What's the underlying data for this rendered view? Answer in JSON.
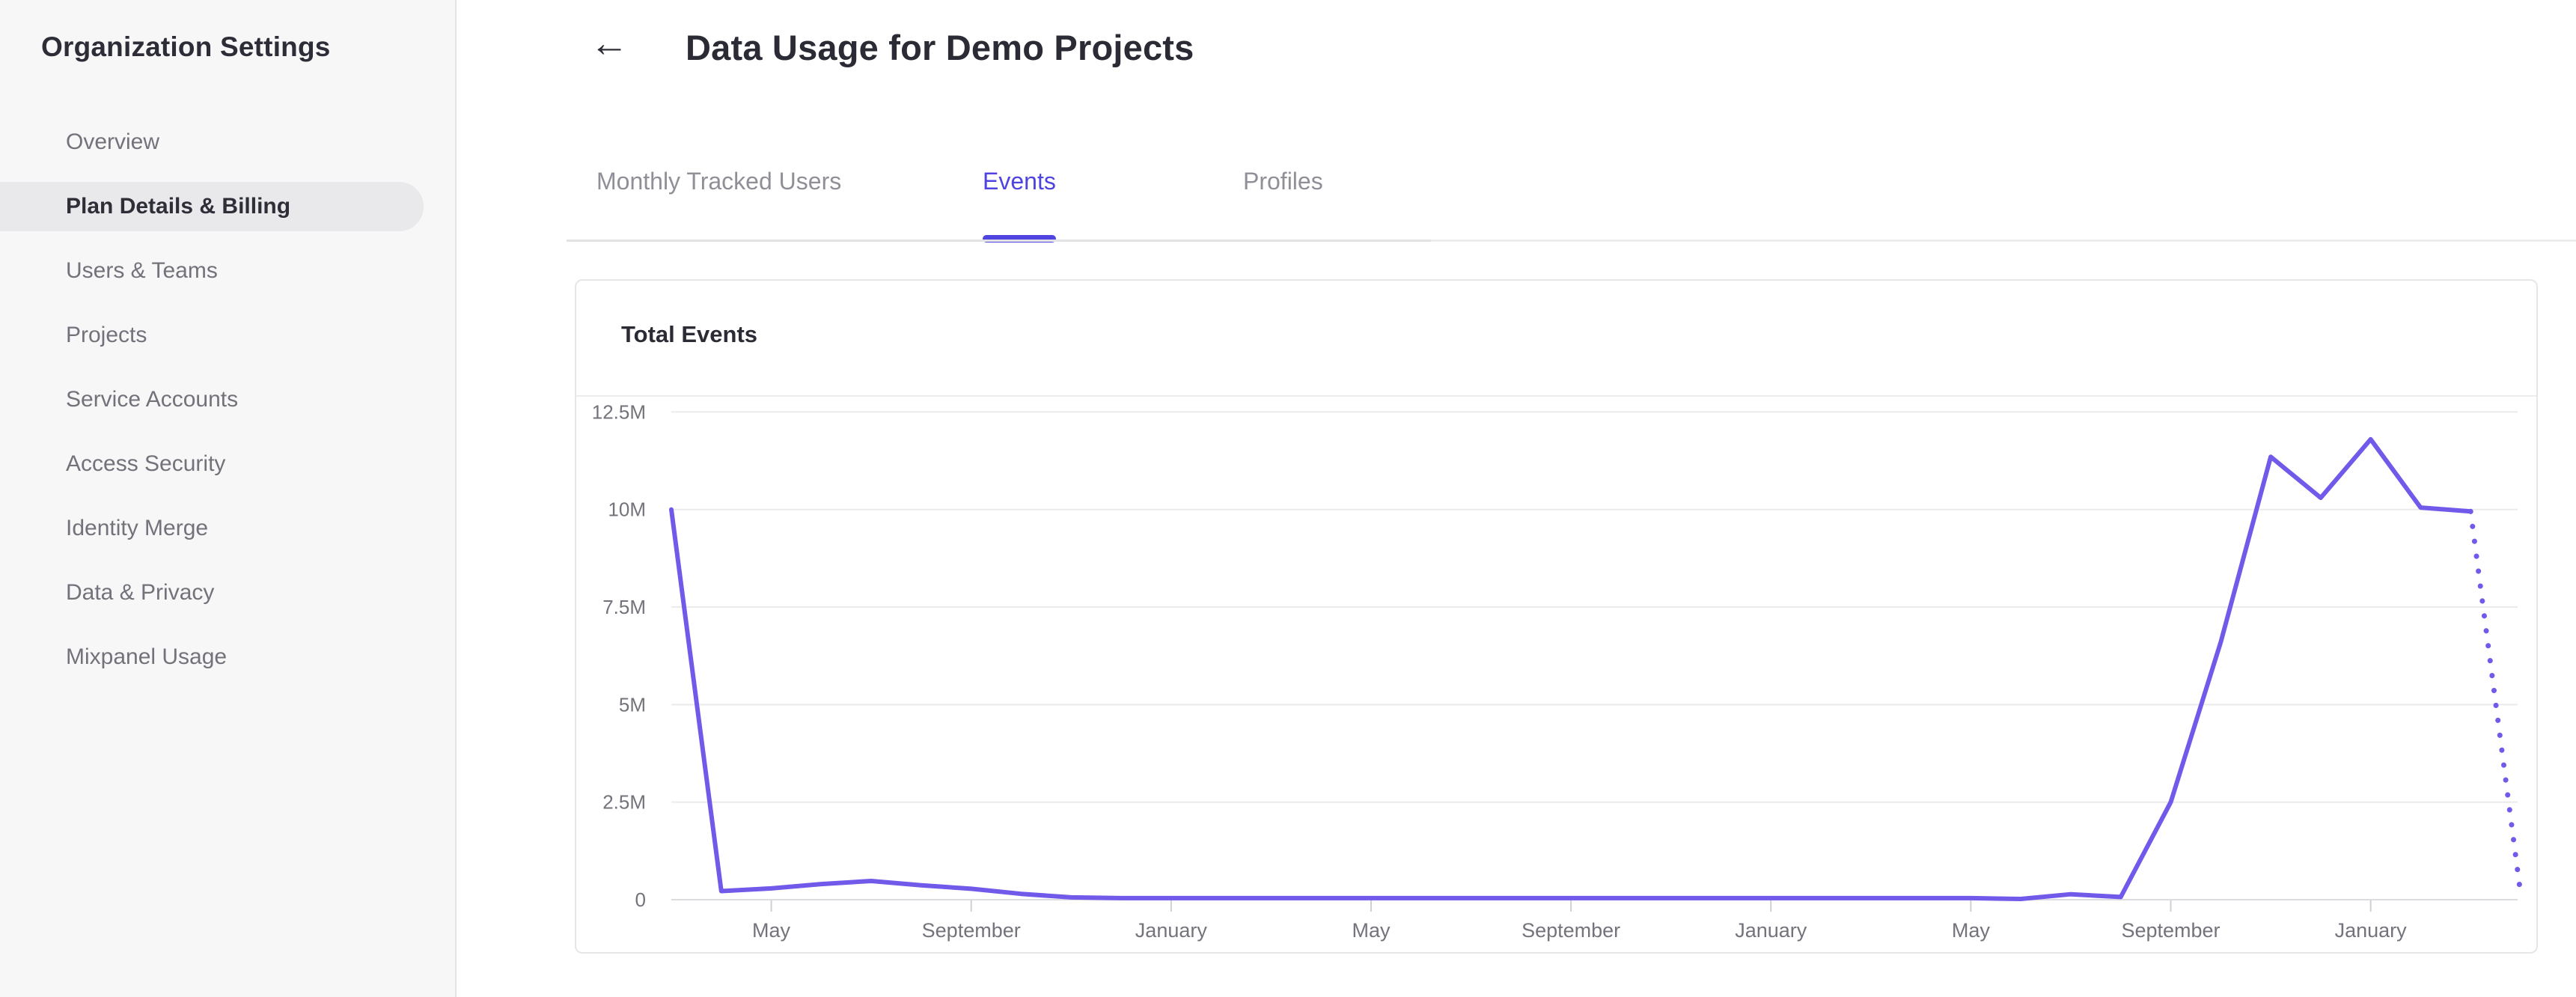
{
  "sidebar": {
    "title": "Organization Settings",
    "items": [
      {
        "label": "Overview",
        "active": false
      },
      {
        "label": "Plan Details & Billing",
        "active": true
      },
      {
        "label": "Users & Teams",
        "active": false
      },
      {
        "label": "Projects",
        "active": false
      },
      {
        "label": "Service Accounts",
        "active": false
      },
      {
        "label": "Access Security",
        "active": false
      },
      {
        "label": "Identity Merge",
        "active": false
      },
      {
        "label": "Data & Privacy",
        "active": false
      },
      {
        "label": "Mixpanel Usage",
        "active": false
      }
    ]
  },
  "header": {
    "title": "Data Usage for Demo Projects"
  },
  "icons": {
    "back_arrow": "←"
  },
  "tabs": [
    {
      "label": "Monthly Tracked Users",
      "active": false
    },
    {
      "label": "Events",
      "active": true
    },
    {
      "label": "Profiles",
      "active": false
    }
  ],
  "card": {
    "title": "Total Events"
  },
  "chart_data": {
    "type": "line",
    "title": "Total Events",
    "xlabel": "",
    "ylabel": "",
    "ylim": [
      0,
      12500000
    ],
    "grid": true,
    "legend": "none",
    "y_tick_labels": [
      "12.5M",
      "10M",
      "7.5M",
      "5M",
      "2.5M",
      "0"
    ],
    "y_tick_values": [
      12500000,
      10000000,
      7500000,
      5000000,
      2500000,
      0
    ],
    "x_tick_labels": [
      "May",
      "September",
      "January",
      "May",
      "September",
      "January",
      "May",
      "September",
      "January"
    ],
    "x_tick_positions": [
      2,
      6,
      10,
      14,
      18,
      22,
      26,
      30,
      34
    ],
    "series": [
      {
        "name": "Total Events",
        "values": [
          10000000,
          220000,
          290000,
          400000,
          480000,
          370000,
          280000,
          150000,
          60000,
          40000,
          40000,
          40000,
          40000,
          40000,
          40000,
          40000,
          40000,
          40000,
          40000,
          40000,
          40000,
          40000,
          40000,
          40000,
          40000,
          40000,
          40000,
          20000,
          140000,
          70000,
          2500000,
          6600000,
          11350000,
          10300000,
          11800000,
          10050000,
          9950000,
          150000
        ]
      }
    ],
    "projected_segment": {
      "from_index": 36,
      "to_index": 37,
      "style": "dotted"
    }
  },
  "colors": {
    "accent_tab": "#4f44e0",
    "line": "#7159ea",
    "gridline": "#ebebee",
    "axis_line": "#dcdce0",
    "tick": "#cfcfd4",
    "axis_label": "#73737c"
  }
}
